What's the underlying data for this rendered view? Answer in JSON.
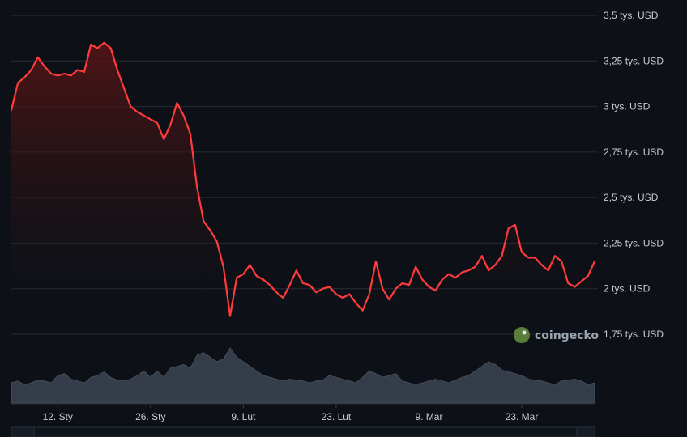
{
  "watermark": "coingecko",
  "colors": {
    "background": "#0d1117",
    "line": "#ff3b3b",
    "area_top": "#5a1515",
    "grid": "#262c36",
    "volume": "#3a4350"
  },
  "chart_data": {
    "type": "area",
    "title": "",
    "xlabel": "",
    "ylabel": "",
    "y_unit_suffix": " tys. USD",
    "ylim": [
      1.75,
      3.5
    ],
    "y_ticks": [
      {
        "value": 3.5,
        "label": "3,5 tys. USD"
      },
      {
        "value": 3.25,
        "label": "3,25 tys. USD"
      },
      {
        "value": 3.0,
        "label": "3 tys. USD"
      },
      {
        "value": 2.75,
        "label": "2,75 tys. USD"
      },
      {
        "value": 2.5,
        "label": "2,5 tys. USD"
      },
      {
        "value": 2.25,
        "label": "2,25 tys. USD"
      },
      {
        "value": 2.0,
        "label": "2 tys. USD"
      },
      {
        "value": 1.75,
        "label": "1,75 tys. USD"
      }
    ],
    "x_range": [
      "2025-01-05",
      "2025-04-03"
    ],
    "x_ticks": [
      {
        "date": "2025-01-12",
        "label": "12. Sty"
      },
      {
        "date": "2025-01-26",
        "label": "26. Sty"
      },
      {
        "date": "2025-02-09",
        "label": "9. Lut"
      },
      {
        "date": "2025-02-23",
        "label": "23. Lut"
      },
      {
        "date": "2025-03-09",
        "label": "9. Mar"
      },
      {
        "date": "2025-03-23",
        "label": "23. Mar"
      }
    ],
    "grid": true,
    "series": [
      {
        "x": [
          "2025-01-05",
          "2025-01-06",
          "2025-01-07",
          "2025-01-08",
          "2025-01-09",
          "2025-01-10",
          "2025-01-11",
          "2025-01-12",
          "2025-01-13",
          "2025-01-14",
          "2025-01-15",
          "2025-01-16",
          "2025-01-17",
          "2025-01-18",
          "2025-01-19",
          "2025-01-20",
          "2025-01-21",
          "2025-01-22",
          "2025-01-23",
          "2025-01-24",
          "2025-01-25",
          "2025-01-26",
          "2025-01-27",
          "2025-01-28",
          "2025-01-29",
          "2025-01-30",
          "2025-01-31",
          "2025-02-01",
          "2025-02-02",
          "2025-02-03",
          "2025-02-04",
          "2025-02-05",
          "2025-02-06",
          "2025-02-07",
          "2025-02-08",
          "2025-02-09",
          "2025-02-10",
          "2025-02-11",
          "2025-02-12",
          "2025-02-13",
          "2025-02-14",
          "2025-02-15",
          "2025-02-16",
          "2025-02-17",
          "2025-02-18",
          "2025-02-19",
          "2025-02-20",
          "2025-02-21",
          "2025-02-22",
          "2025-02-23",
          "2025-02-24",
          "2025-02-25",
          "2025-02-26",
          "2025-02-27",
          "2025-02-28",
          "2025-03-01",
          "2025-03-02",
          "2025-03-03",
          "2025-03-04",
          "2025-03-05",
          "2025-03-06",
          "2025-03-07",
          "2025-03-08",
          "2025-03-09",
          "2025-03-10",
          "2025-03-11",
          "2025-03-12",
          "2025-03-13",
          "2025-03-14",
          "2025-03-15",
          "2025-03-16",
          "2025-03-17",
          "2025-03-18",
          "2025-03-19",
          "2025-03-20",
          "2025-03-21",
          "2025-03-22",
          "2025-03-23",
          "2025-03-24",
          "2025-03-25",
          "2025-03-26",
          "2025-03-27",
          "2025-03-28",
          "2025-03-29",
          "2025-03-30",
          "2025-03-31",
          "2025-04-01",
          "2025-04-02",
          "2025-04-03"
        ],
        "price": [
          2.98,
          3.13,
          3.16,
          3.2,
          3.27,
          3.22,
          3.18,
          3.17,
          3.18,
          3.17,
          3.2,
          3.19,
          3.34,
          3.32,
          3.35,
          3.32,
          3.2,
          3.1,
          3.0,
          2.97,
          2.95,
          2.93,
          2.91,
          2.82,
          2.9,
          3.02,
          2.95,
          2.85,
          2.56,
          2.37,
          2.32,
          2.26,
          2.12,
          1.85,
          2.06,
          2.08,
          2.13,
          2.07,
          2.05,
          2.02,
          1.98,
          1.95,
          2.02,
          2.1,
          2.03,
          2.02,
          1.98,
          2.0,
          2.01,
          1.97,
          1.95,
          1.97,
          1.92,
          1.88,
          1.97,
          2.15,
          2.0,
          1.94,
          2.0,
          2.03,
          2.02,
          2.12,
          2.05,
          2.01,
          1.99,
          2.05,
          2.08,
          2.06,
          2.09,
          2.1,
          2.12,
          2.18,
          2.1,
          2.13,
          2.18,
          2.33,
          2.35,
          2.2,
          2.17,
          2.17,
          2.13,
          2.1,
          2.18,
          2.15,
          2.03,
          2.01,
          2.04,
          2.07,
          2.15
        ],
        "volume": [
          0.22,
          0.24,
          0.2,
          0.22,
          0.25,
          0.24,
          0.22,
          0.3,
          0.32,
          0.26,
          0.24,
          0.22,
          0.28,
          0.3,
          0.34,
          0.28,
          0.25,
          0.24,
          0.26,
          0.3,
          0.35,
          0.28,
          0.35,
          0.28,
          0.38,
          0.4,
          0.42,
          0.38,
          0.52,
          0.55,
          0.5,
          0.45,
          0.48,
          0.6,
          0.5,
          0.45,
          0.4,
          0.35,
          0.3,
          0.28,
          0.26,
          0.24,
          0.26,
          0.25,
          0.24,
          0.22,
          0.24,
          0.25,
          0.3,
          0.28,
          0.26,
          0.24,
          0.22,
          0.28,
          0.35,
          0.32,
          0.28,
          0.3,
          0.32,
          0.24,
          0.22,
          0.2,
          0.22,
          0.24,
          0.26,
          0.24,
          0.22,
          0.25,
          0.28,
          0.3,
          0.35,
          0.4,
          0.45,
          0.42,
          0.36,
          0.34,
          0.32,
          0.3,
          0.26,
          0.25,
          0.24,
          0.22,
          0.2,
          0.24,
          0.25,
          0.26,
          0.24,
          0.2,
          0.22
        ]
      }
    ]
  }
}
